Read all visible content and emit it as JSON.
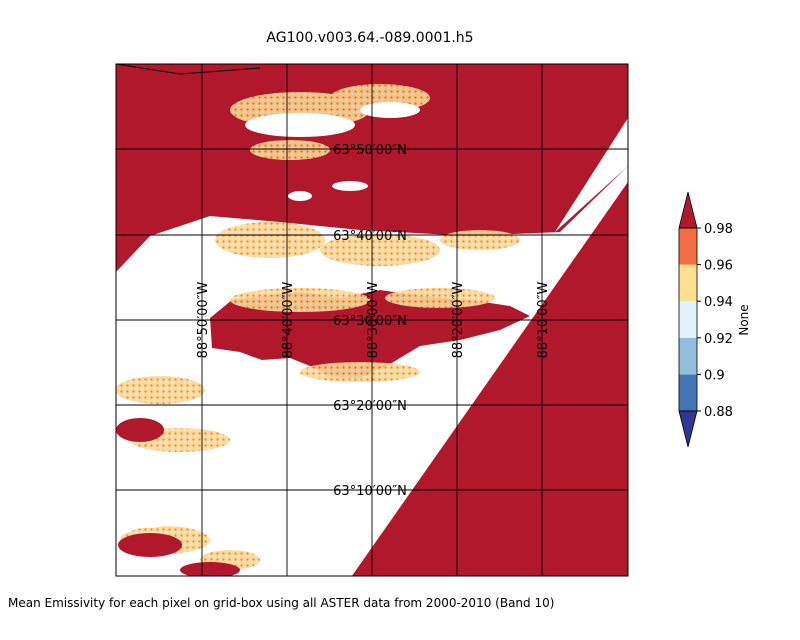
{
  "title": "AG100.v003.64.-089.0001.h5",
  "caption": "Mean Emissivity for each pixel on grid-box using all ASTER data from 2000-2010 (Band 10)",
  "map": {
    "latitude_labels": [
      "63°50′00″N",
      "63°40′00″N",
      "63°30′00″N",
      "63°20′00″N",
      "63°10′00″N"
    ],
    "longitude_labels": [
      "88°50′00″W",
      "88°40′00″W",
      "88°30′00″W",
      "88°20′00″W",
      "88°10′00″W"
    ],
    "colors": {
      "dominant": "#b2182b",
      "nodata": "#ffffff",
      "frame": "#000000"
    }
  },
  "colorbar": {
    "label": "None",
    "ticks": [
      "0.98",
      "0.96",
      "0.94",
      "0.92",
      "0.9",
      "0.88"
    ],
    "segments": [
      {
        "from": 0.88,
        "to": 0.9,
        "color": "#4575b4"
      },
      {
        "from": 0.9,
        "to": 0.92,
        "color": "#91bfdb"
      },
      {
        "from": 0.92,
        "to": 0.94,
        "color": "#e0f3f8"
      },
      {
        "from": 0.94,
        "to": 0.96,
        "color": "#fee090"
      },
      {
        "from": 0.96,
        "to": 0.98,
        "color": "#f46d43"
      }
    ],
    "under_color": "#313695",
    "over_color": "#b2182b"
  }
}
